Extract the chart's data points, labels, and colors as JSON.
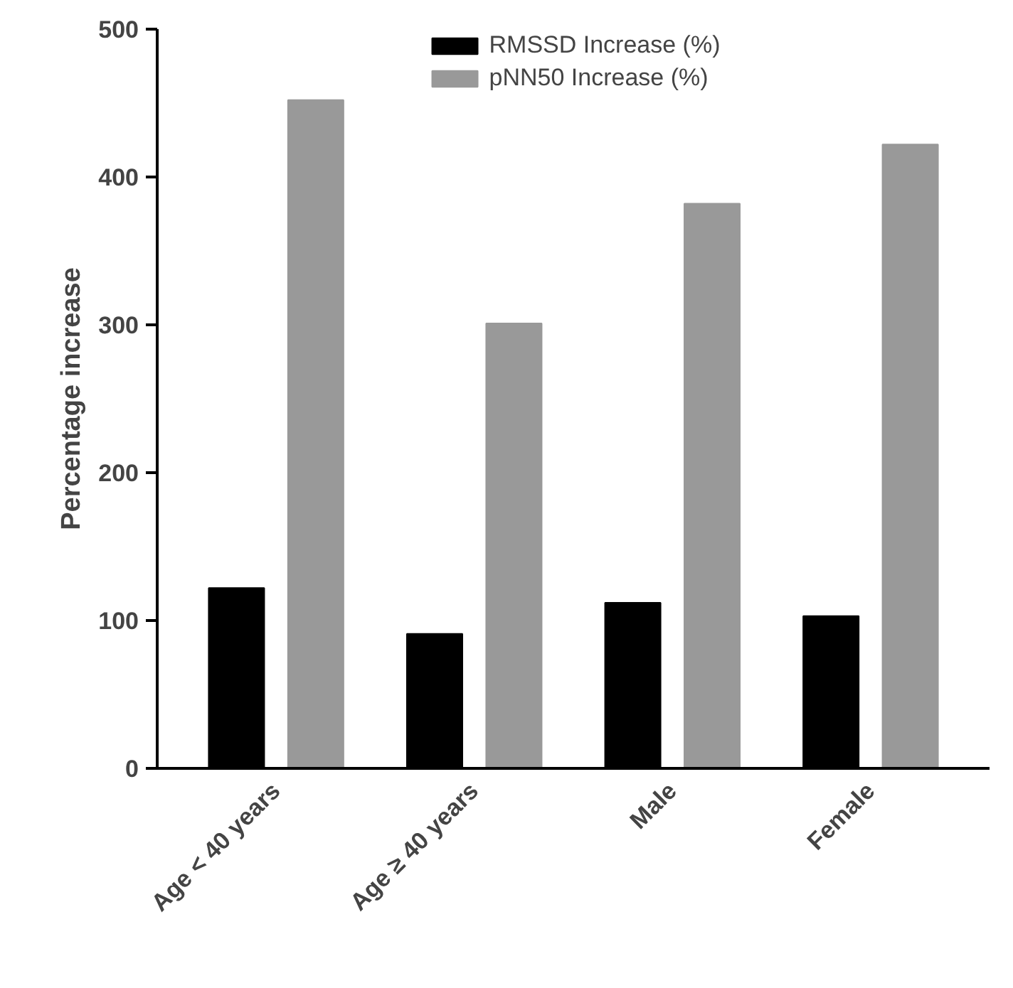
{
  "chart_data": {
    "type": "bar",
    "ylabel": "Percentage increase",
    "categories": [
      "Age < 40 years",
      "Age ≥ 40 years",
      "Male",
      "Female"
    ],
    "series": [
      {
        "name": "RMSSD Increase (%)",
        "color": "#000000",
        "values": [
          122,
          91,
          112,
          103
        ]
      },
      {
        "name": "pNN50 Increase (%)",
        "color": "#999999",
        "values": [
          452,
          301,
          382,
          422
        ]
      }
    ],
    "ylim": [
      0,
      500
    ],
    "yticks": [
      0,
      100,
      200,
      300,
      400,
      500
    ],
    "grid": false,
    "legend": "top"
  }
}
